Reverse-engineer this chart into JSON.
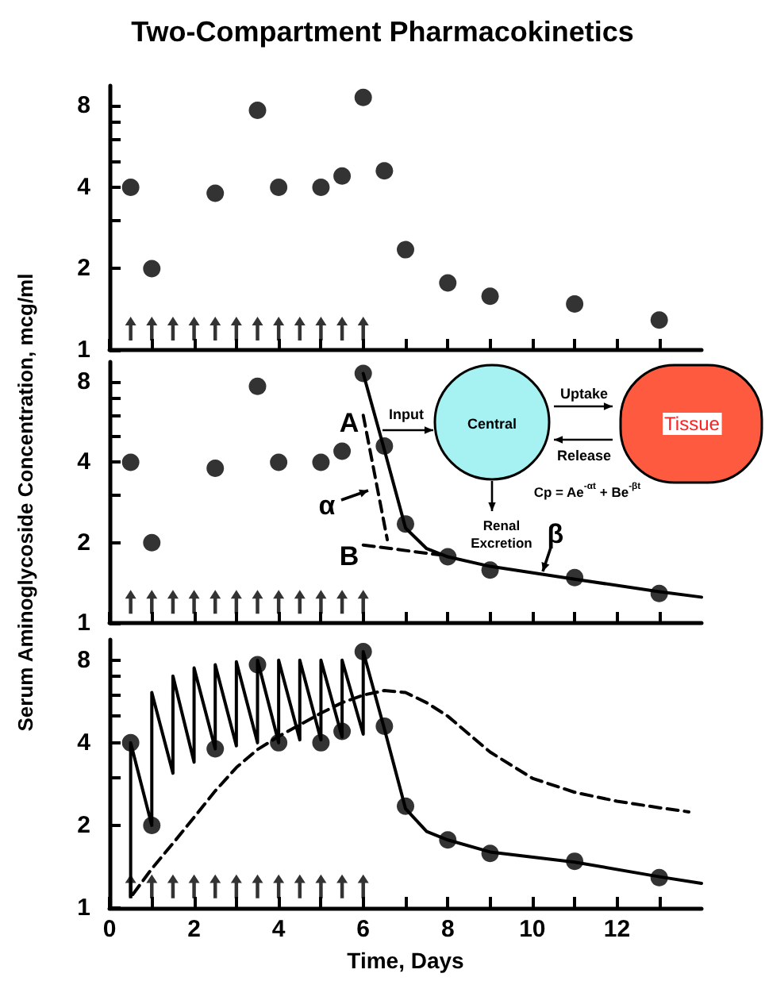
{
  "chart_data": [
    {
      "type": "scatter",
      "title": "Two-Compartment Pharmacokinetics",
      "x": [
        0.5,
        1,
        2.5,
        3.5,
        4,
        5,
        5.5,
        6,
        6.5,
        7,
        8,
        9,
        11,
        13
      ],
      "xlim": [
        0,
        14
      ],
      "xticks": [
        0,
        {
          "value": 1,
          "label": null
        },
        2,
        {
          "value": 3,
          "label": null
        },
        4,
        {
          "value": 5,
          "label": null
        },
        6,
        {
          "value": 7,
          "label": null
        },
        8,
        {
          "value": 9,
          "label": null
        },
        10,
        {
          "value": 11,
          "label": null
        },
        12,
        {
          "value": 13,
          "label": null
        }
      ],
      "ylim": [
        1,
        9.5
      ],
      "yticks": [
        1,
        2,
        {
          "value": 3,
          "label": null
        },
        4,
        {
          "value": 5,
          "label": null
        },
        {
          "value": 6,
          "label": null
        },
        {
          "value": 7,
          "label": null
        },
        8
      ],
      "log": "y",
      "tick_labels": "y",
      "marker": "circle",
      "series": [
        {
          "color": "#000000",
          "values": [
            4.0,
            2.0,
            3.8,
            7.7,
            4.0,
            4.0,
            4.4,
            8.6,
            4.6,
            2.35,
            1.77,
            1.58,
            1.48,
            1.29
          ]
        },
        {
          "color": "#000000",
          "marker": "triangle",
          "x": [
            0.5,
            1,
            1.5,
            2,
            2.5,
            3,
            3.5,
            4,
            4.5,
            5,
            5.5,
            6
          ],
          "values": [
            1.2,
            1.2,
            1.2,
            1.2,
            1.2,
            1.2,
            1.2,
            1.2,
            1.2,
            1.2,
            1.2,
            1.2
          ]
        }
      ]
    },
    {
      "type": "scatter",
      "ylabel": "Serum Aminoglycoside Concentration, mcg/ml",
      "x": [
        0.5,
        1,
        2.5,
        3.5,
        4,
        5,
        5.5,
        6,
        6.5,
        7,
        8,
        9,
        11,
        13
      ],
      "xlim": [
        0,
        14
      ],
      "xticks": [
        0,
        {
          "value": 1,
          "label": null
        },
        2,
        {
          "value": 3,
          "label": null
        },
        4,
        {
          "value": 5,
          "label": null
        },
        6,
        {
          "value": 7,
          "label": null
        },
        8,
        {
          "value": 9,
          "label": null
        },
        10,
        {
          "value": 11,
          "label": null
        },
        12,
        {
          "value": 13,
          "label": null
        }
      ],
      "ylim": [
        1,
        9.5
      ],
      "yticks": [
        1,
        2,
        {
          "value": 3,
          "label": null
        },
        4,
        {
          "value": 5,
          "label": null
        },
        {
          "value": 6,
          "label": null
        },
        {
          "value": 7,
          "label": null
        },
        8
      ],
      "log": "y",
      "tick_labels": "y",
      "marker": "circle",
      "annotations": [
        "A",
        "B",
        "α",
        "β",
        "Input",
        "Central",
        "Uptake",
        "Release",
        "Tissue",
        "Renal Excretion",
        "Cp = Ae$^{-αt}$ + Be$^{-βt}$"
      ],
      "series": [
        {
          "color": "#000000",
          "values": [
            4.0,
            2.0,
            3.8,
            7.7,
            4.0,
            4.0,
            4.4,
            8.6,
            4.6,
            2.35,
            1.77,
            1.58,
            1.48,
            1.29
          ]
        },
        {
          "type": "line",
          "color": "#000000",
          "marker": "none",
          "x": [
            6,
            6.5,
            7,
            7.5,
            8,
            9,
            11,
            13,
            14
          ],
          "values": [
            8.6,
            4.45,
            2.27,
            1.9,
            1.77,
            1.63,
            1.46,
            1.31,
            1.25
          ]
        },
        {
          "type": "line",
          "color": "#000000",
          "marker": "none",
          "line_style": "dashed",
          "x": [
            6.0,
            6.57
          ],
          "values": [
            6.0,
            2.05
          ]
        },
        {
          "type": "line",
          "color": "#000000",
          "marker": "none",
          "line_style": "dashed",
          "x": [
            6.0,
            7.8
          ],
          "values": [
            1.96,
            1.8
          ]
        },
        {
          "color": "#000000",
          "marker": "triangle",
          "x": [
            0.5,
            1,
            1.5,
            2,
            2.5,
            3,
            3.5,
            4,
            4.5,
            5,
            5.5,
            6
          ],
          "values": [
            1.2,
            1.2,
            1.2,
            1.2,
            1.2,
            1.2,
            1.2,
            1.2,
            1.2,
            1.2,
            1.2,
            1.2
          ]
        }
      ]
    },
    {
      "type": "scatter",
      "xlabel": "Time, Days",
      "x": [
        0.5,
        1,
        2.5,
        3.5,
        4,
        5,
        5.5,
        6,
        6.5,
        7,
        8,
        9,
        11,
        13
      ],
      "xlim": [
        0,
        14
      ],
      "xticks": [
        0,
        {
          "value": 1,
          "label": null
        },
        2,
        {
          "value": 3,
          "label": null
        },
        4,
        {
          "value": 5,
          "label": null
        },
        6,
        {
          "value": 7,
          "label": null
        },
        8,
        {
          "value": 9,
          "label": null
        },
        10,
        {
          "value": 11,
          "label": null
        },
        12,
        {
          "value": 13,
          "label": null
        }
      ],
      "ylim": [
        1,
        9.5
      ],
      "yticks": [
        1,
        2,
        {
          "value": 3,
          "label": null
        },
        4,
        {
          "value": 5,
          "label": null
        },
        {
          "value": 6,
          "label": null
        },
        {
          "value": 7,
          "label": null
        },
        8
      ],
      "log": "y",
      "marker": "circle",
      "series": [
        {
          "color": "#000000",
          "values": [
            4.0,
            2.0,
            3.8,
            7.7,
            4.0,
            4.0,
            4.4,
            8.6,
            4.6,
            2.35,
            1.77,
            1.58,
            1.48,
            1.29
          ]
        },
        {
          "type": "line",
          "color": "#000000",
          "marker": "none",
          "x": [
            0.5,
            0.5,
            1,
            1,
            1.5,
            1.5,
            2,
            2,
            2.5,
            2.5,
            3,
            3,
            3.5,
            3.5,
            4,
            4,
            4.5,
            4.5,
            5,
            5,
            5.5,
            5.5,
            6,
            6,
            6.5,
            7,
            7.5,
            8,
            9,
            11,
            13,
            14
          ],
          "values": [
            1.1,
            4.0,
            2.0,
            6.1,
            3.1,
            7.0,
            3.4,
            7.5,
            3.8,
            7.7,
            3.9,
            7.9,
            4.0,
            8.0,
            4.0,
            8.0,
            4.1,
            8.0,
            4.1,
            8.0,
            4.2,
            8.0,
            4.3,
            8.6,
            4.5,
            2.3,
            1.9,
            1.77,
            1.6,
            1.47,
            1.3,
            1.23
          ]
        },
        {
          "type": "line",
          "color": "#000000",
          "marker": "none",
          "line_style": "dashed",
          "x": [
            0.55,
            1,
            1.5,
            2,
            2.5,
            3,
            3.5,
            4,
            5,
            5.5,
            6,
            6.5,
            7,
            7.5,
            8,
            8.5,
            9,
            10,
            11,
            12,
            13,
            13.7
          ],
          "values": [
            1.12,
            1.39,
            1.72,
            2.14,
            2.67,
            3.25,
            3.78,
            4.22,
            5.13,
            5.6,
            5.97,
            6.2,
            6.1,
            5.6,
            5.0,
            4.3,
            3.7,
            2.97,
            2.64,
            2.45,
            2.32,
            2.24
          ]
        },
        {
          "color": "#000000",
          "marker": "triangle",
          "x": [
            0.5,
            1,
            1.5,
            2,
            2.5,
            3,
            3.5,
            4,
            4.5,
            5,
            5.5,
            6
          ],
          "values": [
            1.2,
            1.2,
            1.2,
            1.2,
            1.2,
            1.2,
            1.2,
            1.2,
            1.2,
            1.2,
            1.2,
            1.2
          ]
        }
      ]
    }
  ]
}
